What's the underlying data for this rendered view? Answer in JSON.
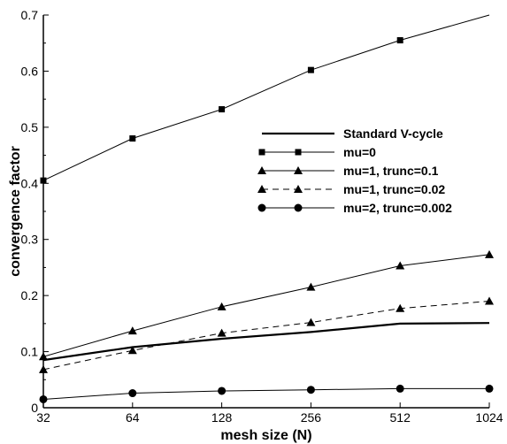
{
  "chart_data": {
    "type": "line",
    "title": "",
    "xlabel": "mesh size (N)",
    "ylabel": "convergence factor",
    "x_scale": "log2",
    "categories": [
      "32",
      "64",
      "128",
      "256",
      "512",
      "1024"
    ],
    "x": [
      32,
      64,
      128,
      256,
      512,
      1024
    ],
    "ylim": [
      0,
      0.7
    ],
    "yticks": [
      "0",
      "0.1",
      "0.2",
      "0.3",
      "0.4",
      "0.5",
      "0.6",
      "0.7"
    ],
    "grid": false,
    "legend_position": "center-right",
    "series": [
      {
        "name": "Standard V-cycle",
        "values": [
          0.085,
          0.108,
          0.123,
          0.135,
          0.15,
          0.151
        ],
        "marker": "none",
        "dash": "solid",
        "width": "thick"
      },
      {
        "name": "mu=0",
        "values": [
          0.405,
          0.48,
          0.532,
          0.602,
          0.655,
          0.7
        ],
        "marker": "square",
        "dash": "solid",
        "width": "thin"
      },
      {
        "name": "mu=1, trunc=0.1",
        "values": [
          0.091,
          0.137,
          0.18,
          0.215,
          0.253,
          0.273
        ],
        "marker": "triangle",
        "dash": "solid",
        "width": "thin"
      },
      {
        "name": "mu=1, trunc=0.02",
        "values": [
          0.068,
          0.102,
          0.133,
          0.152,
          0.177,
          0.19
        ],
        "marker": "triangle",
        "dash": "dashed",
        "width": "thin"
      },
      {
        "name": "mu=2, trunc=0.002",
        "values": [
          0.015,
          0.026,
          0.03,
          0.032,
          0.034,
          0.034
        ],
        "marker": "circle",
        "dash": "solid",
        "width": "thin"
      }
    ]
  }
}
